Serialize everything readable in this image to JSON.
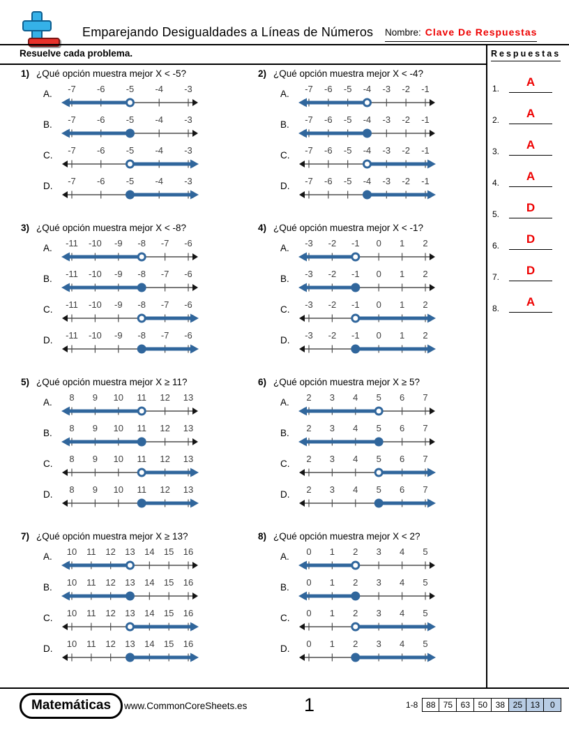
{
  "header": {
    "title": "Emparejando Desigualdades a Líneas de Números",
    "name_label": "Nombre:",
    "name_value": "Clave De Respuestas"
  },
  "instructions": "Resuelve cada problema.",
  "answers_panel": {
    "title": "Respuestas",
    "items": [
      {
        "num": "1.",
        "answer": "A"
      },
      {
        "num": "2.",
        "answer": "A"
      },
      {
        "num": "3.",
        "answer": "A"
      },
      {
        "num": "4.",
        "answer": "A"
      },
      {
        "num": "5.",
        "answer": "D"
      },
      {
        "num": "6.",
        "answer": "D"
      },
      {
        "num": "7.",
        "answer": "D"
      },
      {
        "num": "8.",
        "answer": "A"
      }
    ]
  },
  "problems": [
    {
      "num": "1)",
      "question": "¿Qué opción muestra mejor X < -5?",
      "labels": [
        "-7",
        "-6",
        "-5",
        "-4",
        "-3"
      ],
      "point_index": 2,
      "options": [
        {
          "letter": "A.",
          "circle": "open",
          "direction": "left"
        },
        {
          "letter": "B.",
          "circle": "closed",
          "direction": "left"
        },
        {
          "letter": "C.",
          "circle": "open",
          "direction": "right"
        },
        {
          "letter": "D.",
          "circle": "closed",
          "direction": "right"
        }
      ]
    },
    {
      "num": "2)",
      "question": "¿Qué opción muestra mejor X < -4?",
      "labels": [
        "-7",
        "-6",
        "-5",
        "-4",
        "-3",
        "-2",
        "-1"
      ],
      "point_index": 3,
      "options": [
        {
          "letter": "A.",
          "circle": "open",
          "direction": "left"
        },
        {
          "letter": "B.",
          "circle": "closed",
          "direction": "left"
        },
        {
          "letter": "C.",
          "circle": "open",
          "direction": "right"
        },
        {
          "letter": "D.",
          "circle": "closed",
          "direction": "right"
        }
      ]
    },
    {
      "num": "3)",
      "question": "¿Qué opción muestra mejor X < -8?",
      "labels": [
        "-11",
        "-10",
        "-9",
        "-8",
        "-7",
        "-6"
      ],
      "point_index": 3,
      "options": [
        {
          "letter": "A.",
          "circle": "open",
          "direction": "left"
        },
        {
          "letter": "B.",
          "circle": "closed",
          "direction": "left"
        },
        {
          "letter": "C.",
          "circle": "open",
          "direction": "right"
        },
        {
          "letter": "D.",
          "circle": "closed",
          "direction": "right"
        }
      ]
    },
    {
      "num": "4)",
      "question": "¿Qué opción muestra mejor X < -1?",
      "labels": [
        "-3",
        "-2",
        "-1",
        "0",
        "1",
        "2"
      ],
      "point_index": 2,
      "options": [
        {
          "letter": "A.",
          "circle": "open",
          "direction": "left"
        },
        {
          "letter": "B.",
          "circle": "closed",
          "direction": "left"
        },
        {
          "letter": "C.",
          "circle": "open",
          "direction": "right"
        },
        {
          "letter": "D.",
          "circle": "closed",
          "direction": "right"
        }
      ]
    },
    {
      "num": "5)",
      "question": "¿Qué opción muestra mejor X ≥ 11?",
      "labels": [
        "8",
        "9",
        "10",
        "11",
        "12",
        "13"
      ],
      "point_index": 3,
      "options": [
        {
          "letter": "A.",
          "circle": "open",
          "direction": "left"
        },
        {
          "letter": "B.",
          "circle": "closed",
          "direction": "left"
        },
        {
          "letter": "C.",
          "circle": "open",
          "direction": "right"
        },
        {
          "letter": "D.",
          "circle": "closed",
          "direction": "right"
        }
      ]
    },
    {
      "num": "6)",
      "question": "¿Qué opción muestra mejor X ≥ 5?",
      "labels": [
        "2",
        "3",
        "4",
        "5",
        "6",
        "7"
      ],
      "point_index": 3,
      "options": [
        {
          "letter": "A.",
          "circle": "open",
          "direction": "left"
        },
        {
          "letter": "B.",
          "circle": "closed",
          "direction": "left"
        },
        {
          "letter": "C.",
          "circle": "open",
          "direction": "right"
        },
        {
          "letter": "D.",
          "circle": "closed",
          "direction": "right"
        }
      ]
    },
    {
      "num": "7)",
      "question": "¿Qué opción muestra mejor X ≥ 13?",
      "labels": [
        "10",
        "11",
        "12",
        "13",
        "14",
        "15",
        "16"
      ],
      "point_index": 3,
      "options": [
        {
          "letter": "A.",
          "circle": "open",
          "direction": "left"
        },
        {
          "letter": "B.",
          "circle": "closed",
          "direction": "left"
        },
        {
          "letter": "C.",
          "circle": "open",
          "direction": "right"
        },
        {
          "letter": "D.",
          "circle": "closed",
          "direction": "right"
        }
      ]
    },
    {
      "num": "8)",
      "question": "¿Qué opción muestra mejor X < 2?",
      "labels": [
        "0",
        "1",
        "2",
        "3",
        "4",
        "5"
      ],
      "point_index": 2,
      "options": [
        {
          "letter": "A.",
          "circle": "open",
          "direction": "left"
        },
        {
          "letter": "B.",
          "circle": "closed",
          "direction": "left"
        },
        {
          "letter": "C.",
          "circle": "open",
          "direction": "right"
        },
        {
          "letter": "D.",
          "circle": "closed",
          "direction": "right"
        }
      ]
    }
  ],
  "footer": {
    "brand": "Matemáticas",
    "website": "www.CommonCoreSheets.es",
    "page": "1",
    "score_label": "1-8",
    "scores": [
      "88",
      "75",
      "63",
      "50",
      "38",
      "25",
      "13",
      "0"
    ],
    "highlight_start": 5
  },
  "colors": {
    "answer_red": "#ee0000",
    "line_blue": "#30669c",
    "logo_blue": "#35b1e8",
    "logo_red": "#e8312a",
    "score_highlight": "#b8cce4"
  }
}
